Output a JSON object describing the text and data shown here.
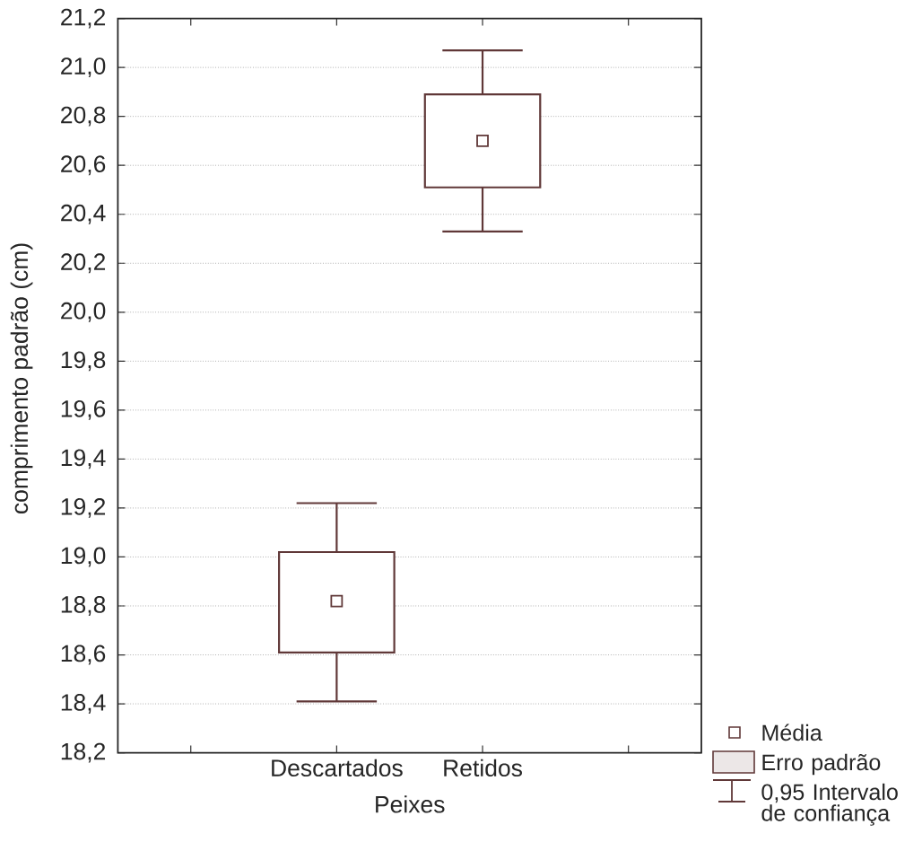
{
  "chart_data": {
    "type": "box",
    "xlabel": "Peixes",
    "ylabel": "comprimento padrão (cm)",
    "categories": [
      "Descartados",
      "Retidos"
    ],
    "boxes": [
      {
        "low": 18.41,
        "q1": 18.61,
        "mean": 18.82,
        "q3": 19.02,
        "high": 19.22
      },
      {
        "low": 20.33,
        "q1": 20.51,
        "mean": 20.7,
        "q3": 20.89,
        "high": 21.07
      }
    ],
    "color": "#603838",
    "ylim": [
      18.2,
      21.2
    ],
    "yticks": [
      {
        "value": 18.2,
        "label": "18,2"
      },
      {
        "value": 18.4,
        "label": "18,4"
      },
      {
        "value": 18.6,
        "label": "18,6"
      },
      {
        "value": 18.8,
        "label": "18,8"
      },
      {
        "value": 19.0,
        "label": "19,0"
      },
      {
        "value": 19.2,
        "label": "19,2"
      },
      {
        "value": 19.4,
        "label": "19,4"
      },
      {
        "value": 19.6,
        "label": "19,6"
      },
      {
        "value": 19.8,
        "label": "19,8"
      },
      {
        "value": 20.0,
        "label": "20,0"
      },
      {
        "value": 20.2,
        "label": "20,2"
      },
      {
        "value": 20.4,
        "label": "20,4"
      },
      {
        "value": 20.6,
        "label": "20,6"
      },
      {
        "value": 20.8,
        "label": "20,8"
      },
      {
        "value": 21.0,
        "label": "21,0"
      },
      {
        "value": 21.2,
        "label": "21,2"
      }
    ],
    "grid": "y",
    "annotations": [
      "Média",
      "Erro padrão",
      "0,95 Intervalo de confiança"
    ]
  }
}
